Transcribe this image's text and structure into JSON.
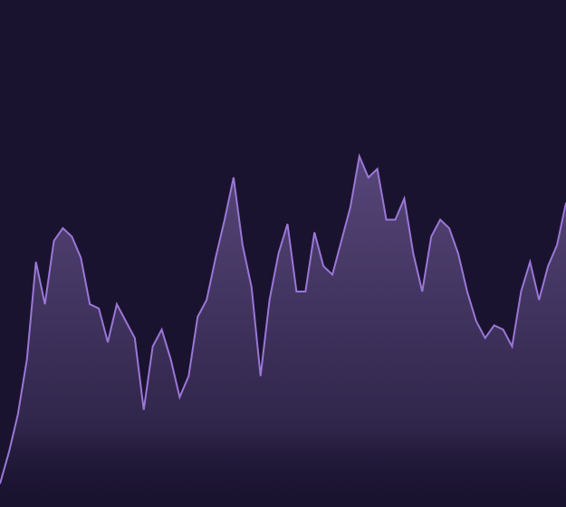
{
  "colors": {
    "background": "#1a1330",
    "line": "#9b77d6",
    "fill_top": "#6f5a96",
    "fill_bottom": "#1a1330"
  },
  "chart_data": {
    "type": "area",
    "x": [
      0,
      1,
      2,
      3,
      4,
      5,
      6,
      7,
      8,
      9,
      10,
      11,
      12,
      13,
      14,
      15,
      16,
      17,
      18,
      19,
      20,
      21,
      22,
      23,
      24,
      25,
      26,
      27,
      28,
      29,
      30,
      31,
      32,
      33,
      34,
      35,
      36,
      37,
      38,
      39,
      40,
      41,
      42,
      43,
      44,
      45,
      46,
      47,
      48,
      49,
      50,
      51,
      52,
      53,
      54,
      55,
      56,
      57,
      58,
      59,
      60,
      61,
      62,
      63
    ],
    "series": [
      {
        "values": [
          5.5,
          13,
          22,
          35,
          58,
          48,
          63,
          66,
          64,
          59,
          48,
          47,
          39,
          48,
          44,
          40,
          23,
          38,
          42,
          35,
          26,
          31,
          45,
          49,
          59,
          68,
          78,
          62,
          52,
          31,
          49,
          60,
          67,
          51,
          51,
          65,
          57,
          55,
          63,
          71,
          83,
          78,
          80,
          68,
          68,
          73,
          60,
          51,
          64,
          68,
          66,
          60,
          51,
          44,
          40,
          43,
          42,
          38,
          51,
          58,
          49,
          57,
          62,
          72
        ]
      }
    ],
    "xlim": [
      0,
      63
    ],
    "ylim": [
      0,
      120
    ],
    "grid": false,
    "legend": "none"
  }
}
